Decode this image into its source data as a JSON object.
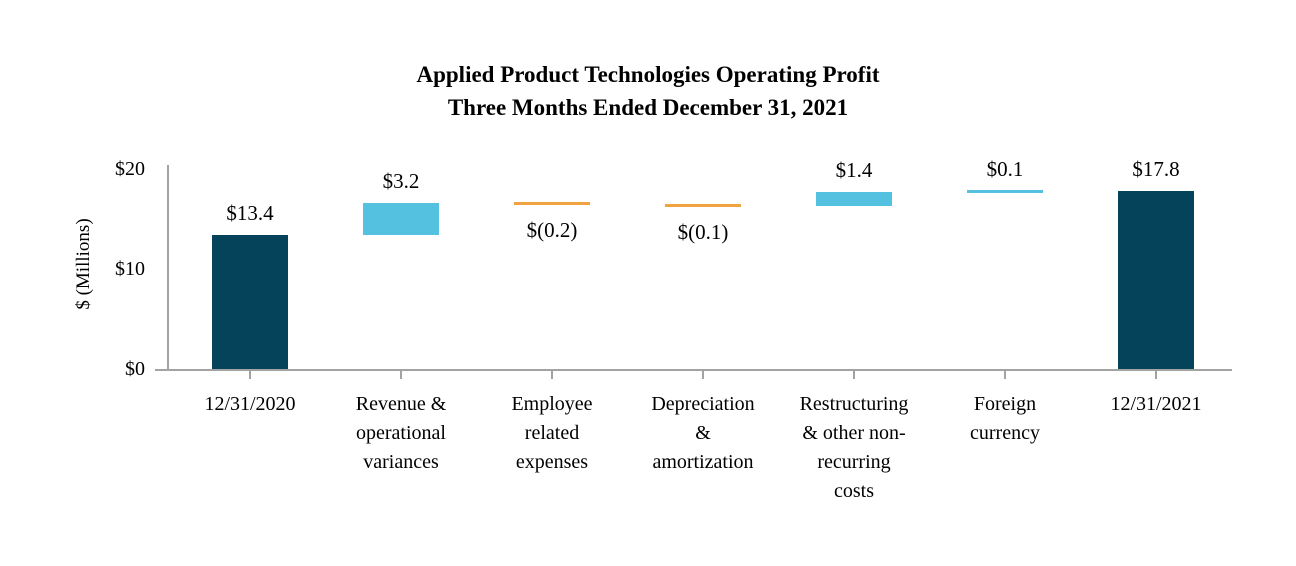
{
  "chart_data": {
    "type": "waterfall",
    "title_line1": "Applied Product Technologies Operating Profit",
    "title_line2": "Three Months Ended December 31, 2021",
    "ylabel": "$ (Millions)",
    "ylim": [
      0,
      20
    ],
    "grid": "off",
    "legend": "none",
    "y_ticks": [
      {
        "value": 0,
        "label": "$0"
      },
      {
        "value": 10,
        "label": "$10"
      },
      {
        "value": 20,
        "label": "$20"
      }
    ],
    "colors": {
      "total": "#04435A",
      "increase": "#55C1E0",
      "increase-line": "#55C1E0",
      "decrease-line": "#F0A340",
      "axis": "#A3A3A3",
      "text": "#000000",
      "background": "#FFFFFF"
    },
    "bars": [
      {
        "category": "12/31/2020",
        "value_label": "$13.4",
        "value": 13.4,
        "start": 0,
        "end": 13.4,
        "style": "total",
        "label_pos": "above"
      },
      {
        "category": "Revenue &\noperational\nvariances",
        "value_label": "$3.2",
        "value": 3.2,
        "start": 13.4,
        "end": 16.6,
        "style": "increase",
        "label_pos": "above"
      },
      {
        "category": "Employee\nrelated\nexpenses",
        "value_label": "$(0.2)",
        "value": -0.2,
        "start": 16.6,
        "end": 16.4,
        "style": "decrease-line",
        "label_pos": "below"
      },
      {
        "category": "Depreciation\n&\namortization",
        "value_label": "$(0.1)",
        "value": -0.1,
        "start": 16.4,
        "end": 16.3,
        "style": "decrease-line",
        "label_pos": "below"
      },
      {
        "category": "Restructuring\n& other non-\nrecurring\ncosts",
        "value_label": "$1.4",
        "value": 1.4,
        "start": 16.3,
        "end": 17.7,
        "style": "increase",
        "label_pos": "above"
      },
      {
        "category": "Foreign\ncurrency",
        "value_label": "$0.1",
        "value": 0.1,
        "start": 17.7,
        "end": 17.8,
        "style": "increase-line",
        "label_pos": "above"
      },
      {
        "category": "12/31/2021",
        "value_label": "$17.8",
        "value": 17.8,
        "start": 0,
        "end": 17.8,
        "style": "total",
        "label_pos": "above"
      }
    ]
  }
}
